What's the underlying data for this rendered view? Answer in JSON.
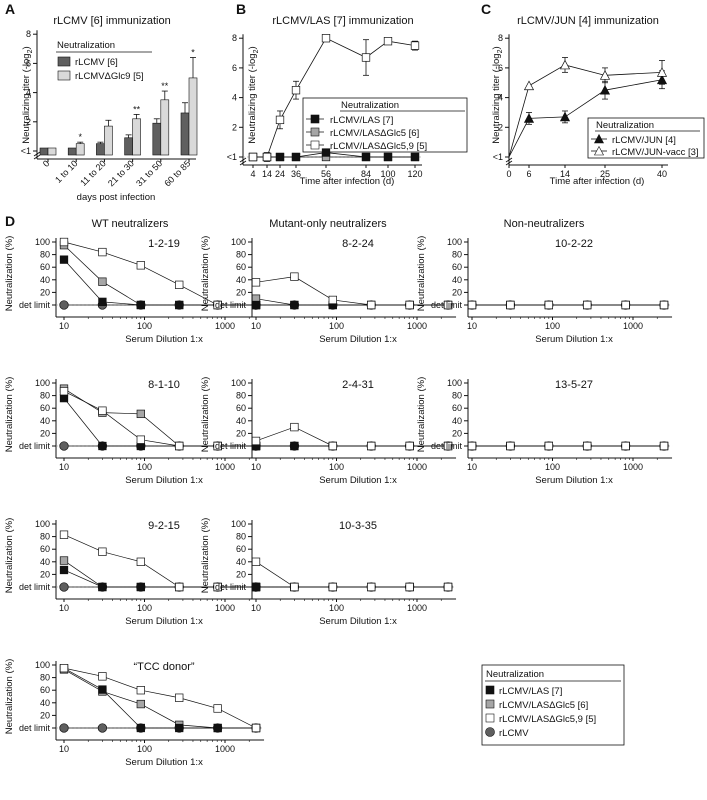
{
  "panels": {
    "A": {
      "letter": "A",
      "title": "rLCMV [6] immunization",
      "ylabel": "Neutralizing titer (-log",
      "ylabel_sub": "2",
      "ylabel_end": ")",
      "xlabel": "days post infection"
    },
    "B": {
      "letter": "B",
      "title": "rLCMV/LAS [7] immunization",
      "ylabel": "Neutralizing titer (-log",
      "ylabel_sub": "2",
      "ylabel_end": ")",
      "xlabel": "Time after infection (d)"
    },
    "C": {
      "letter": "C",
      "title": "rLCMV/JUN [4] immunization",
      "ylabel": "Neutralizing titer (-log",
      "ylabel_sub": "2",
      "ylabel_end": ")",
      "xlabel": "Time after infection (d)"
    },
    "D": {
      "letter": "D",
      "groups": [
        "WT neutralizers",
        "Mutant-only neutralizers",
        "Non-neutralizers"
      ],
      "ylabel": "Neutralization (%)",
      "xlabel": "Serum Dilution 1:x",
      "det_label": "det limit"
    }
  },
  "legends": {
    "A": {
      "title": "Neutralization",
      "items": [
        "rLCMV [6]",
        "rLCMVΔGlc9 [5]"
      ]
    },
    "B": {
      "title": "Neutralization",
      "items": [
        "rLCMV/LAS [7]",
        "rLCMV/LASΔGlc5 [6]",
        "rLCMV/LASΔGlc5,9 [5]"
      ]
    },
    "C": {
      "title": "Neutralization",
      "items": [
        "rLCMV/JUN [4]",
        "rLCMV/JUN-vacc [3]"
      ]
    },
    "D": {
      "title": "Neutralization",
      "items": [
        "rLCMV/LAS [7]",
        "rLCMV/LASΔGlc5 [6]",
        "rLCMV/LASΔGlc5,9 [5]",
        "rLCMV"
      ]
    }
  },
  "colors": {
    "dark_gray": "#5f5f5f",
    "light_gray": "#d9d9d9",
    "mid_gray": "#a6a6a6",
    "black": "#111111",
    "white": "#ffffff"
  },
  "chart_data": [
    {
      "id": "A",
      "type": "bar",
      "title": "rLCMV [6] immunization",
      "xlabel": "days post infection",
      "ylabel": "Neutralizing titer (-log2)",
      "categories": [
        "0",
        "1 to 10",
        "11 to 20",
        "21 to 30",
        "31 to 50",
        "60 to 85"
      ],
      "yticks": [
        "<1",
        "2",
        "4",
        "6",
        "8"
      ],
      "ylim": [
        0,
        8
      ],
      "series": [
        {
          "name": "rLCMV [6]",
          "values": [
            0,
            0,
            0.3,
            0.7,
            1.7,
            2.4
          ],
          "errors": [
            0,
            0,
            0.1,
            0.2,
            0.3,
            0.7
          ]
        },
        {
          "name": "rLCMVΔGlc9 [5]",
          "values": [
            0,
            0.3,
            1.5,
            2.0,
            3.3,
            4.8
          ],
          "errors": [
            0,
            0.1,
            0.4,
            0.3,
            0.6,
            1.4
          ]
        }
      ],
      "significance": [
        "",
        "*",
        "",
        "**",
        "**",
        "*"
      ]
    },
    {
      "id": "B",
      "type": "line",
      "title": "rLCMV/LAS [7] immunization",
      "xlabel": "Time after infection (d)",
      "ylabel": "Neutralizing titer (-log2)",
      "x": [
        4,
        14,
        24,
        36,
        56,
        84,
        100,
        120
      ],
      "yticks": [
        "<1",
        "2",
        "4",
        "6",
        "8"
      ],
      "ylim": [
        0,
        8
      ],
      "series": [
        {
          "name": "rLCMV/LAS [7]",
          "x": [
            4,
            14,
            24,
            36,
            56,
            84,
            100,
            120
          ],
          "values": [
            0,
            0,
            0,
            0,
            0.3,
            0,
            0,
            0
          ],
          "errors": [
            0,
            0,
            0,
            0,
            0.2,
            0,
            0,
            0
          ]
        },
        {
          "name": "rLCMV/LASΔGlc5 [6]",
          "x": [
            4,
            14,
            24,
            36,
            56,
            84,
            100,
            120
          ],
          "values": [
            0,
            0,
            0,
            0,
            0,
            0,
            0,
            0
          ],
          "errors": [
            0,
            0,
            0,
            0,
            0,
            0,
            0,
            0
          ]
        },
        {
          "name": "rLCMV/LASΔGlc5,9 [5]",
          "x": [
            4,
            14,
            24,
            36,
            56,
            84,
            100,
            120
          ],
          "values": [
            0,
            0,
            2.5,
            4.5,
            8.0,
            6.7,
            7.8,
            7.5
          ],
          "errors": [
            0,
            0.3,
            0.6,
            0.6,
            0,
            1.2,
            0,
            0.3
          ]
        }
      ]
    },
    {
      "id": "C",
      "type": "line",
      "title": "rLCMV/JUN [4] immunization",
      "xlabel": "Time after infection (d)",
      "ylabel": "Neutralizing titer (-log2)",
      "xticks": [
        0,
        6,
        14,
        25,
        40
      ],
      "yticks": [
        "<1",
        "2",
        "4",
        "6",
        "8"
      ],
      "ylim": [
        0,
        8
      ],
      "series": [
        {
          "name": "rLCMV/JUN [4]",
          "x": [
            0,
            6,
            14,
            25,
            40
          ],
          "values": [
            0,
            2.6,
            2.7,
            4.5,
            5.2
          ],
          "errors": [
            0,
            0.4,
            0.4,
            0.6,
            0.6
          ]
        },
        {
          "name": "rLCMV/JUN-vacc [3]",
          "x": [
            0,
            6,
            14,
            25,
            40
          ],
          "values": [
            0,
            4.8,
            6.2,
            5.5,
            5.7
          ],
          "errors": [
            0,
            0,
            0.5,
            0.5,
            0.8
          ]
        }
      ]
    },
    {
      "id": "D",
      "type": "line",
      "log_x": true,
      "xticks": [
        10,
        100,
        1000
      ],
      "yticks": [
        20,
        40,
        60,
        80,
        100
      ],
      "ylim": [
        0,
        100
      ],
      "x": [
        10,
        30,
        90,
        270,
        810,
        2430
      ],
      "series_names": [
        "rLCMV/LAS [7]",
        "rLCMV/LASΔGlc5 [6]",
        "rLCMV/LASΔGlc5,9 [5]",
        "rLCMV"
      ],
      "subplots": [
        {
          "name": "1-2-19",
          "values": [
            [
              72,
              5,
              0,
              0,
              0,
              0
            ],
            [
              95,
              37,
              0,
              0,
              0,
              0
            ],
            [
              100,
              84,
              63,
              32,
              0,
              0
            ],
            [
              0,
              0,
              0,
              0,
              0,
              0
            ]
          ]
        },
        {
          "name": "8-2-24",
          "values": [
            [
              0,
              0,
              0,
              0,
              0,
              0
            ],
            [
              10,
              0,
              0,
              0,
              0,
              0
            ],
            [
              36,
              45,
              8,
              0,
              0,
              0
            ],
            [
              0,
              0,
              0,
              0,
              0,
              0
            ]
          ]
        },
        {
          "name": "10-2-22",
          "values": [
            [
              0,
              0,
              0,
              0,
              0,
              0
            ],
            [
              0,
              0,
              0,
              0,
              0,
              0
            ],
            [
              0,
              0,
              0,
              0,
              0,
              0
            ],
            [
              0,
              0,
              0,
              0,
              0,
              0
            ]
          ]
        },
        {
          "name": "8-1-10",
          "values": [
            [
              76,
              0,
              0,
              0,
              0,
              0
            ],
            [
              91,
              53,
              51,
              0,
              0,
              0
            ],
            [
              87,
              56,
              10,
              0,
              0,
              0
            ],
            [
              0,
              0,
              0,
              0,
              0,
              0
            ]
          ]
        },
        {
          "name": "2-4-31",
          "values": [
            [
              0,
              0,
              0,
              0,
              0,
              0
            ],
            [
              0,
              0,
              0,
              0,
              0,
              0
            ],
            [
              8,
              30,
              0,
              0,
              0,
              0
            ],
            [
              0,
              0,
              0,
              0,
              0,
              0
            ]
          ]
        },
        {
          "name": "13-5-27",
          "values": [
            [
              0,
              0,
              0,
              0,
              0,
              0
            ],
            [
              0,
              0,
              0,
              0,
              0,
              0
            ],
            [
              0,
              0,
              0,
              0,
              0,
              0
            ],
            [
              0,
              0,
              0,
              0,
              0,
              0
            ]
          ]
        },
        {
          "name": "9-2-15",
          "values": [
            [
              27,
              0,
              0,
              0,
              0,
              0
            ],
            [
              42,
              0,
              0,
              0,
              0,
              0
            ],
            [
              83,
              56,
              40,
              0,
              0,
              0
            ],
            [
              0,
              0,
              0,
              0,
              0,
              0
            ]
          ]
        },
        {
          "name": "10-3-35",
          "values": [
            [
              0,
              0,
              0,
              0,
              0,
              0
            ],
            [
              0,
              0,
              0,
              0,
              0,
              0
            ],
            [
              40,
              0,
              0,
              0,
              0,
              0
            ],
            [
              0,
              0,
              0,
              0,
              0,
              0
            ]
          ]
        },
        {
          "name": "“TCC donor”",
          "values": [
            [
              95,
              61,
              0,
              0,
              0,
              0
            ],
            [
              93,
              58,
              38,
              5,
              0,
              0
            ],
            [
              95,
              82,
              60,
              48,
              31,
              0
            ],
            [
              0,
              0,
              0,
              0,
              0,
              0
            ]
          ]
        }
      ]
    }
  ]
}
